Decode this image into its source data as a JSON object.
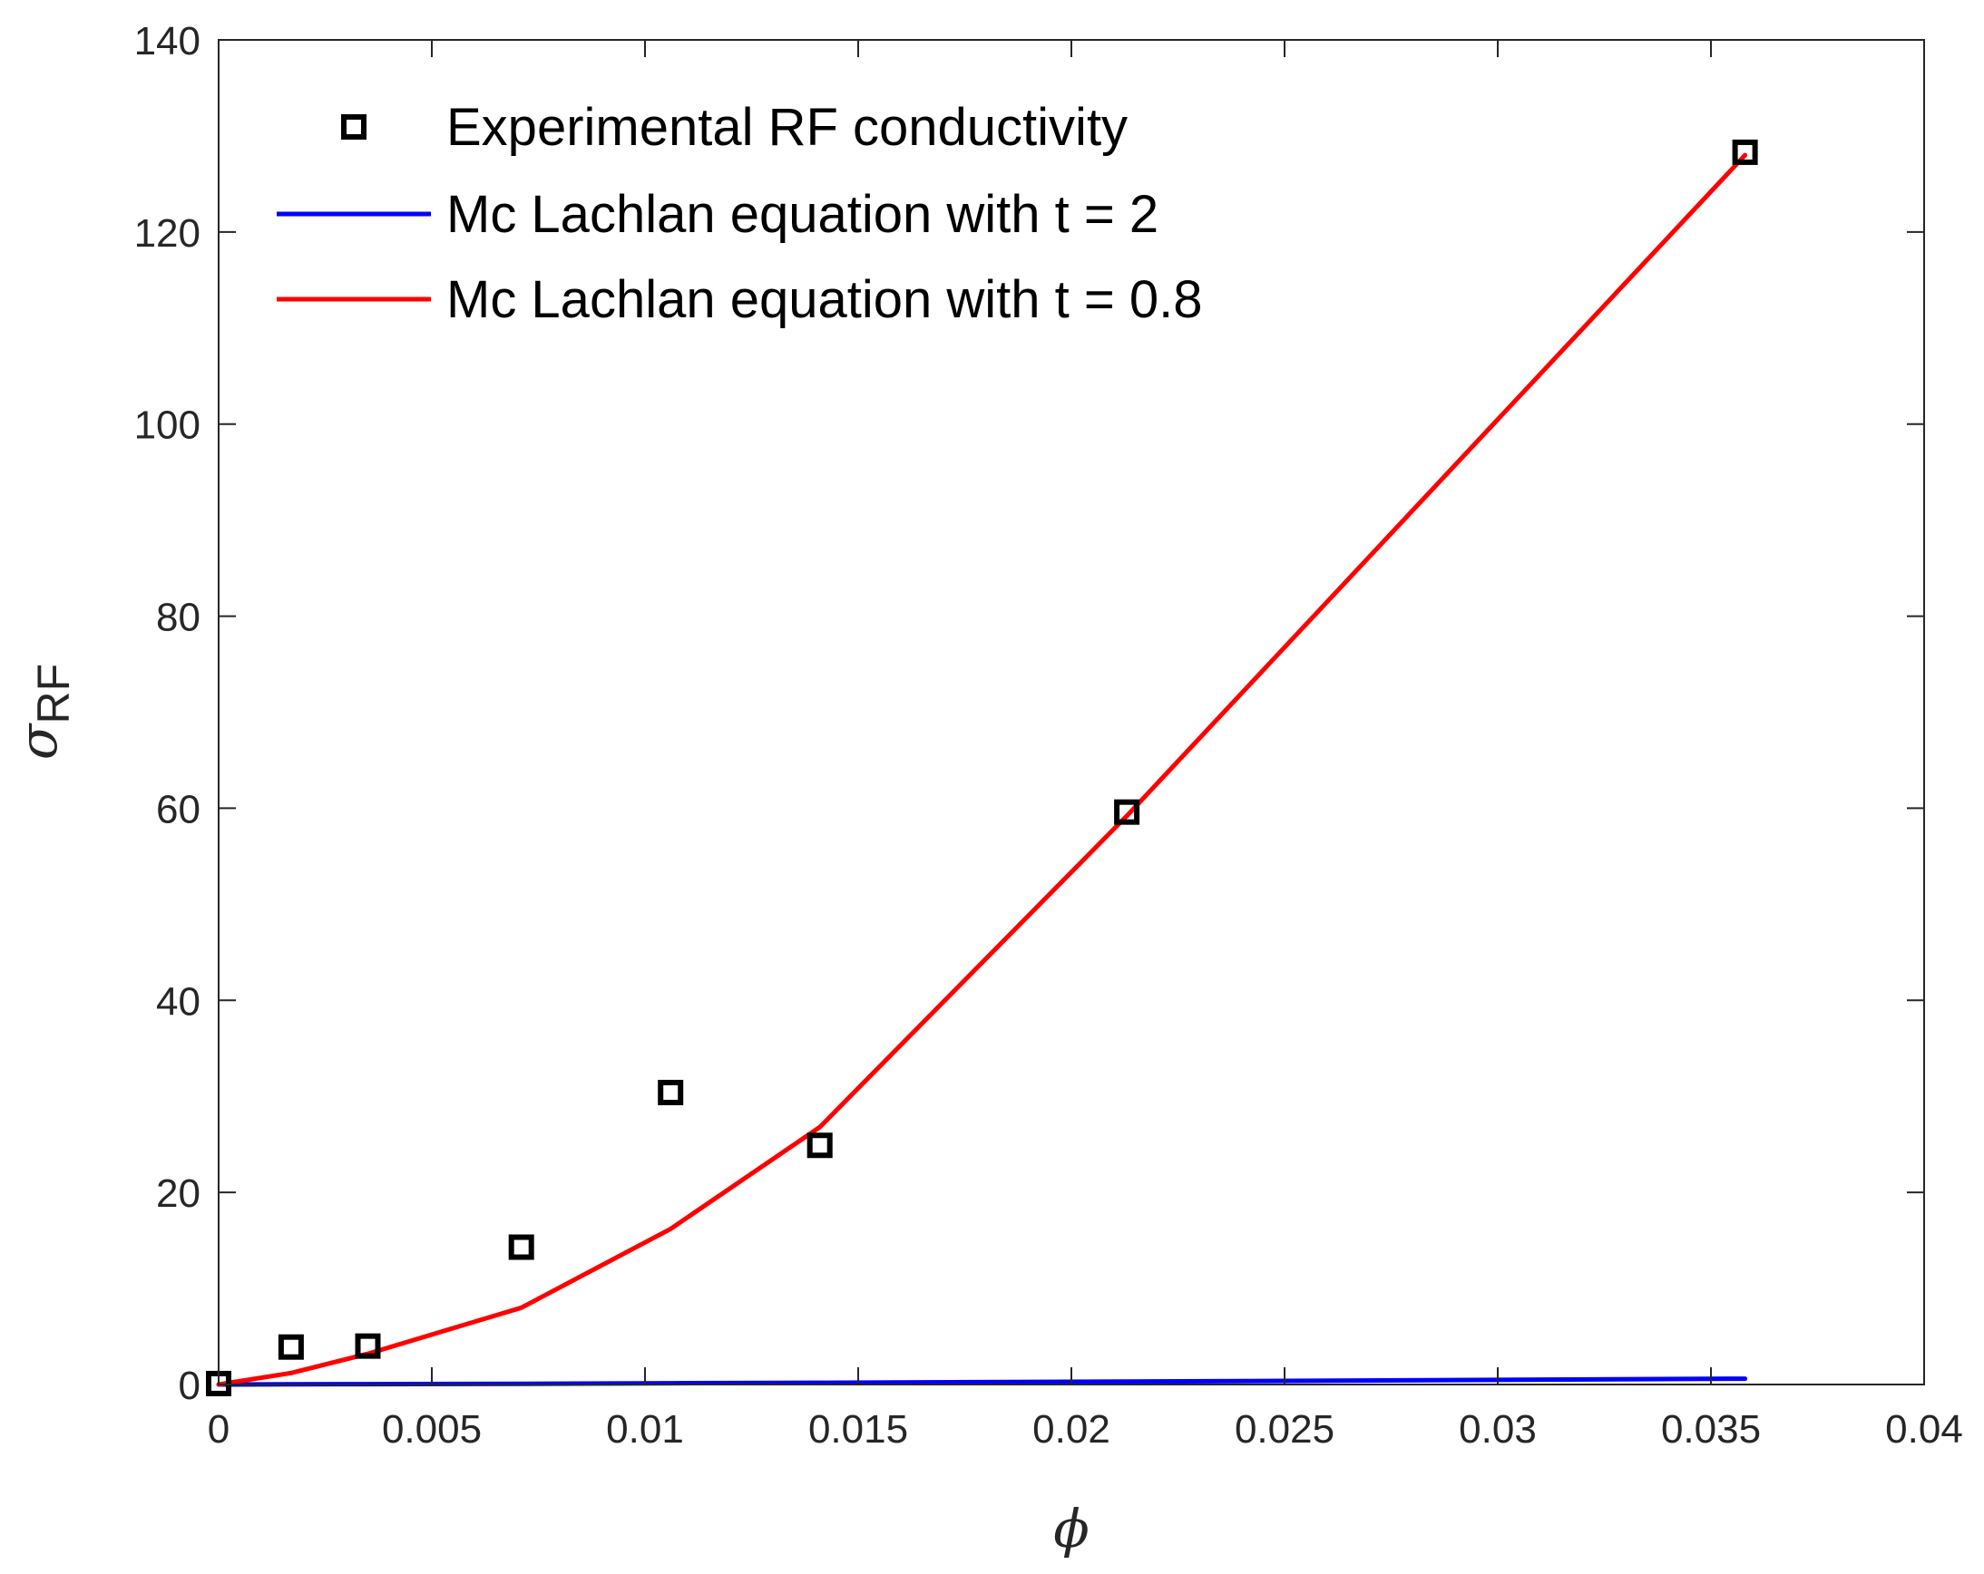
{
  "chart_data": {
    "type": "line",
    "title": "",
    "xlabel": "ϕ",
    "ylabel": {
      "symbol": "σ",
      "subscript": "RF"
    },
    "xlim": [
      0,
      0.04
    ],
    "ylim": [
      0,
      140
    ],
    "x_ticks": [
      0,
      0.005,
      0.01,
      0.015,
      0.02,
      0.025,
      0.03,
      0.035,
      0.04
    ],
    "x_tick_labels": [
      "0",
      "0.005",
      "0.01",
      "0.015",
      "0.02",
      "0.025",
      "0.03",
      "0.035",
      "0.04"
    ],
    "y_ticks": [
      0,
      20,
      40,
      60,
      80,
      100,
      120,
      140
    ],
    "y_tick_labels": [
      "0",
      "20",
      "40",
      "60",
      "80",
      "100",
      "120",
      "140"
    ],
    "grid": false,
    "legend_position": "top-left",
    "series": [
      {
        "name": "Experimental RF conductivity",
        "style": "markers",
        "marker": "square",
        "color": "#000000",
        "x": [
          0,
          0.0017,
          0.0035,
          0.0071,
          0.0106,
          0.0141,
          0.0213,
          0.0358
        ],
        "y": [
          0.1,
          3.9,
          4.0,
          14.3,
          30.4,
          24.9,
          59.6,
          128.3
        ]
      },
      {
        "name": "Mc Lachlan equation with t = 2",
        "style": "line",
        "color": "#0000ff",
        "x": [
          0,
          0.0017,
          0.0035,
          0.0071,
          0.0106,
          0.0141,
          0.0213,
          0.0358
        ],
        "y": [
          0,
          0.02,
          0.04,
          0.08,
          0.13,
          0.18,
          0.3,
          0.6
        ]
      },
      {
        "name": "Mc Lachlan equation with t = 0.8",
        "style": "line",
        "color": "#ff0000",
        "x": [
          0,
          0.0017,
          0.0035,
          0.0071,
          0.0106,
          0.0141,
          0.0213,
          0.0358
        ],
        "y": [
          0,
          1.2,
          3.2,
          8.0,
          16.2,
          26.8,
          59.2,
          128.0
        ]
      }
    ]
  }
}
